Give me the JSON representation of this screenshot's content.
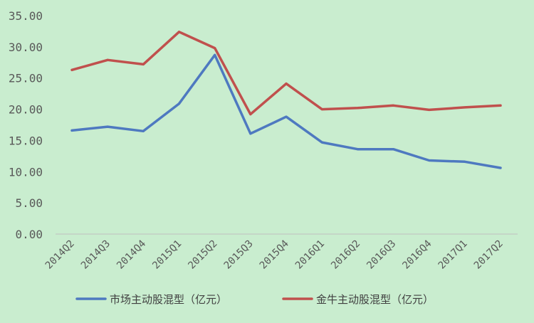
{
  "chart_data": {
    "type": "line",
    "title": "",
    "xlabel": "",
    "ylabel": "",
    "ylim": [
      0,
      35
    ],
    "yticks": [
      "0.00",
      "5.00",
      "10.00",
      "15.00",
      "20.00",
      "25.00",
      "30.00",
      "35.00"
    ],
    "grid": false,
    "legend_position": "bottom",
    "categories": [
      "2014Q2",
      "2014Q3",
      "2014Q4",
      "2015Q1",
      "2015Q2",
      "2015Q3",
      "2015Q4",
      "2016Q1",
      "2016Q2",
      "2016Q3",
      "2016Q4",
      "2017Q1",
      "2017Q2"
    ],
    "series": [
      {
        "name": "市场主动股混型（亿元）",
        "color": "#4E79C0",
        "values": [
          16.6,
          17.2,
          16.5,
          20.9,
          28.7,
          16.1,
          18.8,
          14.7,
          13.6,
          13.6,
          11.8,
          11.6,
          10.6
        ]
      },
      {
        "name": "金牛主动股混型（亿元）",
        "color": "#C0504D",
        "values": [
          26.3,
          27.9,
          27.2,
          32.4,
          29.8,
          19.2,
          24.1,
          20.0,
          20.2,
          20.6,
          19.9,
          20.3,
          20.6
        ]
      }
    ]
  }
}
